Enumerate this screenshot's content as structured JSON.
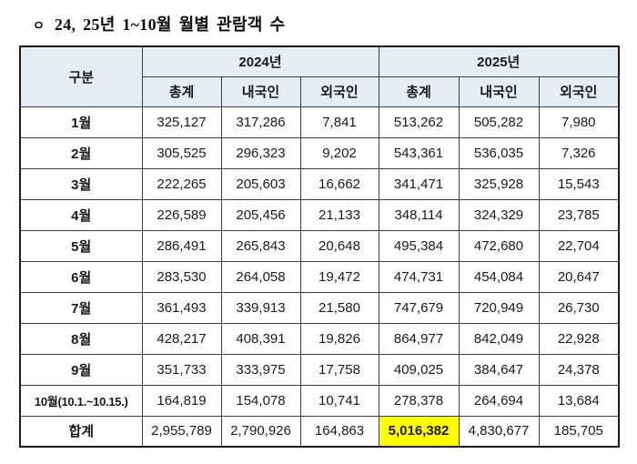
{
  "title": {
    "bullet": "ㅇ",
    "text": "24, 25년 1~10월 월별 관람객 수"
  },
  "table": {
    "corner_header": "구분",
    "year_groups": [
      {
        "label": "2024년",
        "columns": [
          "총계",
          "내국인",
          "외국인"
        ]
      },
      {
        "label": "2025년",
        "columns": [
          "총계",
          "내국인",
          "외국인"
        ]
      }
    ],
    "rows": [
      {
        "label": "1월",
        "values": [
          "325,127",
          "317,286",
          "7,841",
          "513,262",
          "505,282",
          "7,980"
        ]
      },
      {
        "label": "2월",
        "values": [
          "305,525",
          "296,323",
          "9,202",
          "543,361",
          "536,035",
          "7,326"
        ]
      },
      {
        "label": "3월",
        "values": [
          "222,265",
          "205,603",
          "16,662",
          "341,471",
          "325,928",
          "15,543"
        ]
      },
      {
        "label": "4월",
        "values": [
          "226,589",
          "205,456",
          "21,133",
          "348,114",
          "324,329",
          "23,785"
        ]
      },
      {
        "label": "5월",
        "values": [
          "286,491",
          "265,843",
          "20,648",
          "495,384",
          "472,680",
          "22,704"
        ]
      },
      {
        "label": "6월",
        "values": [
          "283,530",
          "264,058",
          "19,472",
          "474,731",
          "454,084",
          "20,647"
        ]
      },
      {
        "label": "7월",
        "values": [
          "361,493",
          "339,913",
          "21,580",
          "747,679",
          "720,949",
          "26,730"
        ]
      },
      {
        "label": "8월",
        "values": [
          "428,217",
          "408,391",
          "19,826",
          "864,977",
          "842,049",
          "22,928"
        ]
      },
      {
        "label": "9월",
        "values": [
          "351,733",
          "333,975",
          "17,758",
          "409,025",
          "384,647",
          "24,378"
        ]
      },
      {
        "label": "10월(10.1.~10.15.)",
        "values": [
          "164,819",
          "154,078",
          "10,741",
          "278,378",
          "264,694",
          "13,684"
        ]
      },
      {
        "label": "합계",
        "is_total": true,
        "highlight_index": 3,
        "values": [
          "2,955,789",
          "2,790,926",
          "164,863",
          "5,016,382",
          "4,830,677",
          "185,705"
        ]
      }
    ],
    "colors": {
      "header_bg": "#E6EDF5",
      "highlight_bg": "#FFFF00",
      "border": "#3D3D3D"
    }
  }
}
